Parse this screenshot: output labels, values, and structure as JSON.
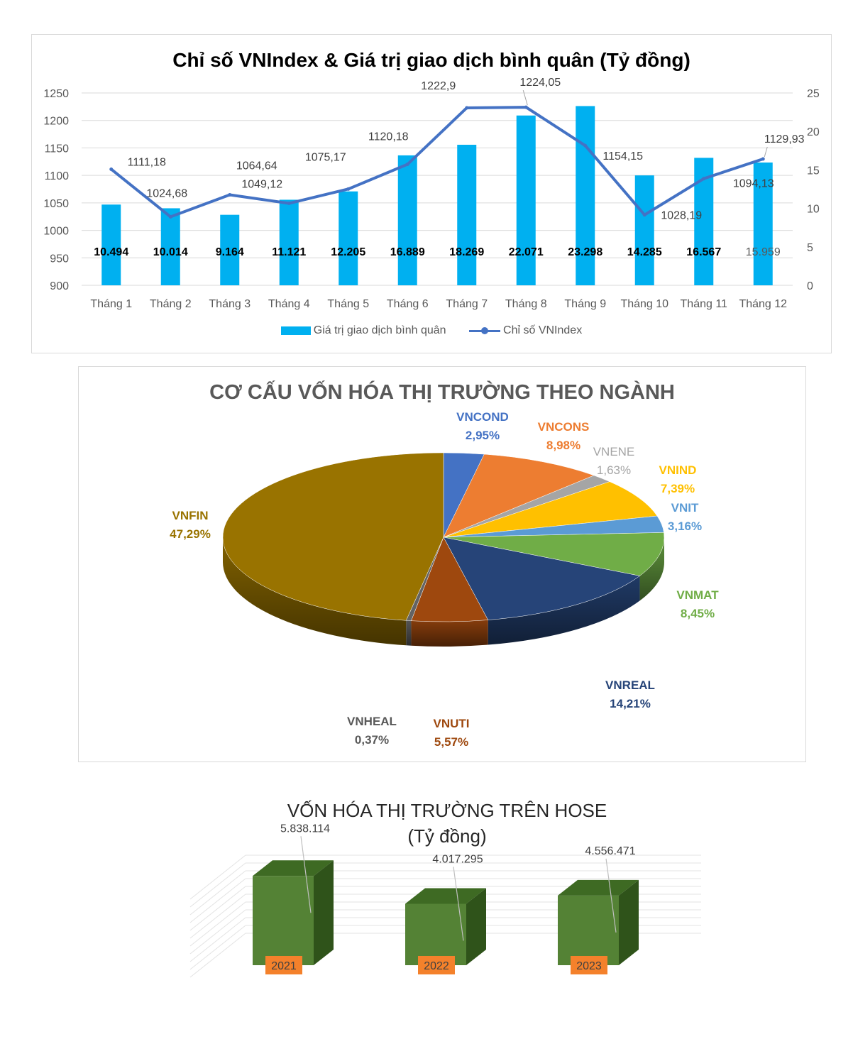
{
  "chart_data": [
    {
      "type": "bar+line",
      "title": "Chỉ số VNIndex & Giá trị giao dịch bình quân (Tỷ đồng)",
      "categories": [
        "Tháng 1",
        "Tháng 2",
        "Tháng 3",
        "Tháng 4",
        "Tháng 5",
        "Tháng 6",
        "Tháng 7",
        "Tháng 8",
        "Tháng 9",
        "Tháng 10",
        "Tháng 11",
        "Tháng 12"
      ],
      "y_left": {
        "ylim": [
          900,
          1250
        ],
        "ticks": [
          "900",
          "950",
          "1000",
          "1050",
          "1100",
          "1150",
          "1200",
          "1250"
        ]
      },
      "y_right": {
        "ylim": [
          0,
          25
        ],
        "ticks": [
          "0",
          "5",
          "10",
          "15",
          "20",
          "25"
        ]
      },
      "bar_series": {
        "name": "Giá trị giao dịch bình quân",
        "axis": "right",
        "color": "#00b0f0",
        "values": [
          10.494,
          10.014,
          9.164,
          11.121,
          12.205,
          16.889,
          18.269,
          22.071,
          23.298,
          14.285,
          16.567,
          15.959
        ],
        "labels": [
          "10.494",
          "10.014",
          "9.164",
          "11.121",
          "12.205",
          "16.889",
          "18.269",
          "22.071",
          "23.298",
          "14.285",
          "16.567",
          "15.959"
        ]
      },
      "line_series": {
        "name": "Chỉ số VNIndex",
        "axis": "left",
        "color": "#4472c4",
        "values": [
          1111.18,
          1024.68,
          1064.64,
          1049.12,
          1075.17,
          1120.18,
          1222.9,
          1224.05,
          1154.15,
          1028.19,
          1094.13,
          1129.93
        ],
        "labels": [
          "1111,18",
          "1024,68",
          "1064,64",
          "1049,12",
          "1075,17",
          "1120,18",
          "1222,9",
          "1224,05",
          "1154,15",
          "1028,19",
          "1094,13",
          "1129,93"
        ]
      },
      "legend_placement": "bottom",
      "grid": true
    },
    {
      "type": "pie",
      "title": "CƠ CẤU VỐN HÓA THỊ TRƯỜNG THEO NGÀNH",
      "slices": [
        {
          "name": "VNCOND",
          "value": 2.95,
          "label": "2,95%",
          "color": "#4472c4"
        },
        {
          "name": "VNCONS",
          "value": 8.98,
          "label": "8,98%",
          "color": "#ed7d31"
        },
        {
          "name": "VNENE",
          "value": 1.63,
          "label": "1,63%",
          "color": "#a5a5a5"
        },
        {
          "name": "VNIND",
          "value": 7.39,
          "label": "7,39%",
          "color": "#ffc000"
        },
        {
          "name": "VNIT",
          "value": 3.16,
          "label": "3,16%",
          "color": "#5b9bd5"
        },
        {
          "name": "VNMAT",
          "value": 8.45,
          "label": "8,45%",
          "color": "#70ad47"
        },
        {
          "name": "VNREAL",
          "value": 14.21,
          "label": "14,21%",
          "color": "#264478"
        },
        {
          "name": "VNUTI",
          "value": 5.57,
          "label": "5,57%",
          "color": "#9e480e"
        },
        {
          "name": "VNHEAL",
          "value": 0.37,
          "label": "0,37%",
          "color": "#636363"
        },
        {
          "name": "VNFIN",
          "value": 47.29,
          "label": "47,29%",
          "color": "#997300"
        }
      ]
    },
    {
      "type": "bar",
      "title_line1": "VỐN HÓA THỊ TRƯỜNG TRÊN HOSE",
      "title_line2": "(Tỷ đồng)",
      "categories": [
        "2021",
        "2022",
        "2023"
      ],
      "values": [
        5838114,
        4017295,
        4556471
      ],
      "labels": [
        "5.838.114",
        "4.017.295",
        "4.556.471"
      ],
      "color": "#548235",
      "category_label_color": "#f4812b"
    }
  ]
}
